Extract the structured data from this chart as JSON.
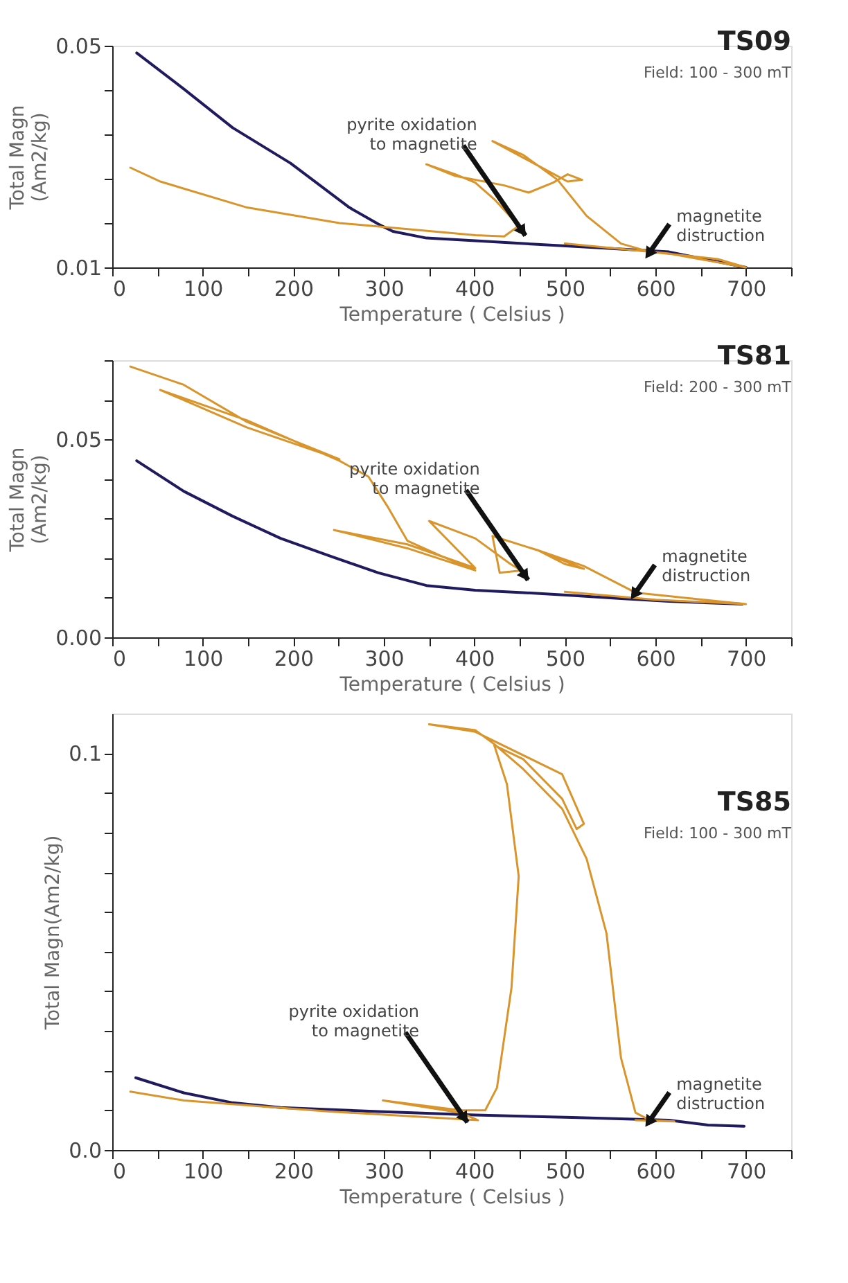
{
  "chart_data": [
    {
      "type": "line",
      "title": "TS09",
      "subtitle": "Field: 100 - 300 mT",
      "xlabel": "Temperature ( Celsius )",
      "ylabel": "Total Magn\n(Am2/kg)",
      "xlim": [
        0,
        750
      ],
      "xticks": [
        0,
        {
          "value": 50,
          "label": null
        },
        100,
        {
          "value": 150,
          "label": null
        },
        200,
        {
          "value": 250,
          "label": null
        },
        300,
        {
          "value": 350,
          "label": null
        },
        400,
        {
          "value": 450,
          "label": null
        },
        500,
        {
          "value": 550,
          "label": null
        },
        600,
        {
          "value": 650,
          "label": null
        },
        700,
        {
          "value": 750,
          "label": null
        }
      ],
      "ylim": [
        0.01,
        0.05
      ],
      "yticks": [
        0.01,
        {
          "value": 0.018,
          "label": null
        },
        {
          "value": 0.026,
          "label": null
        },
        {
          "value": 0.034,
          "label": null
        },
        {
          "value": 0.042,
          "label": null
        },
        0.05
      ],
      "grid": false,
      "marker": "none",
      "line_style": "solid",
      "series": [
        {
          "color": "#1f1b5e",
          "x": [
            27,
            79,
            133,
            197,
            262,
            294,
            310,
            347,
            401,
            508,
            615,
            700
          ],
          "values": [
            0.0487,
            0.0422,
            0.0352,
            0.0288,
            0.0208,
            0.0178,
            0.0165,
            0.0153,
            0.0148,
            0.0138,
            0.0128,
            0.01
          ]
        },
        {
          "color": "#d9952b",
          "x": [
            20,
            53,
            149,
            251,
            299,
            401,
            433,
            449,
            422,
            401,
            379,
            347,
            379,
            433,
            460,
            487,
            503,
            519,
            503,
            454,
            420,
            454,
            492,
            524,
            562,
            594,
            669,
            700,
            615,
            500
          ],
          "values": [
            0.028,
            0.0255,
            0.0208,
            0.018,
            0.0173,
            0.0158,
            0.0156,
            0.0175,
            0.0223,
            0.0253,
            0.0268,
            0.0286,
            0.0265,
            0.0248,
            0.0235,
            0.0253,
            0.0268,
            0.0258,
            0.0255,
            0.0298,
            0.0328,
            0.0303,
            0.0258,
            0.0193,
            0.0143,
            0.0128,
            0.0115,
            0.01,
            0.0125,
            0.0143
          ]
        }
      ],
      "annotations": [
        {
          "text": "pyrite oxidation\nto magnetite",
          "x": 449,
          "y": 0.0175
        },
        {
          "text": "magnetite\ndistruction",
          "x": 594,
          "y": 0.0128
        }
      ]
    },
    {
      "type": "line",
      "title": "TS81",
      "subtitle": "Field: 200 - 300 mT",
      "xlabel": "Temperature ( Celsius )",
      "ylabel": "Total Magn\n(Am2/kg)",
      "xlim": [
        0,
        750
      ],
      "xticks": [
        0,
        {
          "value": 50,
          "label": null
        },
        100,
        {
          "value": 150,
          "label": null
        },
        200,
        {
          "value": 250,
          "label": null
        },
        300,
        {
          "value": 350,
          "label": null
        },
        400,
        {
          "value": 450,
          "label": null
        },
        500,
        {
          "value": 550,
          "label": null
        },
        600,
        {
          "value": 650,
          "label": null
        },
        700,
        {
          "value": 750,
          "label": null
        }
      ],
      "ylim": [
        0,
        0.07
      ],
      "yticks": [
        {
          "value": 0,
          "label": "0.00"
        },
        {
          "value": 0.01,
          "label": null
        },
        {
          "value": 0.02,
          "label": null
        },
        {
          "value": 0.03,
          "label": null
        },
        {
          "value": 0.04,
          "label": null
        },
        0.05,
        {
          "value": 0.06,
          "label": null
        },
        {
          "value": 0.07,
          "label": null
        }
      ],
      "grid": false,
      "marker": "none",
      "line_style": "solid",
      "series": [
        {
          "color": "#1f1b5e",
          "x": [
            27,
            79,
            133,
            186,
            240,
            294,
            347,
            401,
            454,
            508,
            562,
            615,
            696
          ],
          "values": [
            0.0446,
            0.0369,
            0.0306,
            0.025,
            0.0206,
            0.0163,
            0.0131,
            0.0119,
            0.0113,
            0.0106,
            0.0098,
            0.0091,
            0.0084
          ]
        },
        {
          "color": "#d9952b",
          "x": [
            20,
            79,
            149,
            251,
            149,
            53,
            149,
            251,
            283,
            304,
            326,
            363,
            401,
            326,
            245,
            326,
            401,
            350,
            401,
            440,
            452,
            428,
            420,
            470,
            521,
            500,
            470,
            521,
            578,
            700,
            600,
            500
          ],
          "values": [
            0.0684,
            0.0638,
            0.0544,
            0.045,
            0.053,
            0.0625,
            0.0548,
            0.0446,
            0.0406,
            0.0331,
            0.0244,
            0.0206,
            0.0169,
            0.0225,
            0.0271,
            0.0235,
            0.0175,
            0.0294,
            0.025,
            0.0185,
            0.0169,
            0.0163,
            0.0256,
            0.022,
            0.0173,
            0.0185,
            0.022,
            0.018,
            0.0113,
            0.0084,
            0.0095,
            0.0115
          ]
        }
      ],
      "annotations": [
        {
          "text": "pyrite oxidation\nto magnetite",
          "x": 452,
          "y": 0.0169
        },
        {
          "text": "magnetite\ndistruction",
          "x": 578,
          "y": 0.0113
        }
      ]
    },
    {
      "type": "line",
      "title": "TS85",
      "subtitle": "Field: 100 - 300 mT",
      "xlabel": "Temperature ( Celsius )",
      "ylabel": "Total Magn(Am2/kg)",
      "xlim": [
        0,
        750
      ],
      "xticks": [
        0,
        {
          "value": 50,
          "label": null
        },
        100,
        {
          "value": 150,
          "label": null
        },
        200,
        {
          "value": 250,
          "label": null
        },
        300,
        {
          "value": 350,
          "label": null
        },
        400,
        {
          "value": 450,
          "label": null
        },
        500,
        {
          "value": 550,
          "label": null
        },
        600,
        {
          "value": 650,
          "label": null
        },
        700,
        {
          "value": 750,
          "label": null
        }
      ],
      "ylim": [
        0,
        0.11
      ],
      "yticks": [
        {
          "value": 0,
          "label": "0.0"
        },
        {
          "value": 0.01,
          "label": null
        },
        {
          "value": 0.02,
          "label": null
        },
        {
          "value": 0.03,
          "label": null
        },
        {
          "value": 0.04,
          "label": null
        },
        {
          "value": 0.05,
          "label": null
        },
        {
          "value": 0.06,
          "label": null
        },
        {
          "value": 0.07,
          "label": null
        },
        {
          "value": 0.08,
          "label": null
        },
        {
          "value": 0.09,
          "label": null
        },
        0.1
      ],
      "grid": false,
      "marker": "none",
      "line_style": "solid",
      "series": [
        {
          "color": "#1f1b5e",
          "x": [
            26,
            79,
            133,
            186,
            294,
            401,
            508,
            615,
            658,
            698
          ],
          "values": [
            0.0182,
            0.0144,
            0.0119,
            0.0107,
            0.0097,
            0.0088,
            0.0082,
            0.0075,
            0.0063,
            0.006
          ]
        },
        {
          "color": "#d9952b",
          "x": [
            20,
            79,
            240,
            404,
            385,
            299,
            385,
            412,
            425,
            441,
            449,
            436,
            422,
            454,
            497,
            513,
            521,
            497,
            401,
            350,
            401,
            422,
            454,
            497,
            524,
            546,
            562,
            578,
            594,
            621,
            578
          ],
          "values": [
            0.0147,
            0.0125,
            0.0097,
            0.0075,
            0.0094,
            0.0125,
            0.01,
            0.01,
            0.0157,
            0.0408,
            0.069,
            0.0922,
            0.102,
            0.0985,
            0.0885,
            0.0809,
            0.0822,
            0.0947,
            0.1054,
            0.1073,
            0.1058,
            0.1023,
            0.096,
            0.086,
            0.0734,
            0.0546,
            0.0232,
            0.0094,
            0.0075,
            0.0072,
            0.0075
          ]
        }
      ],
      "annotations": [
        {
          "text": "pyrite oxidation\nto magnetite",
          "x": 385,
          "y": 0.0094
        },
        {
          "text": "magnetite\ndistruction",
          "x": 594,
          "y": 0.0075
        }
      ]
    }
  ]
}
